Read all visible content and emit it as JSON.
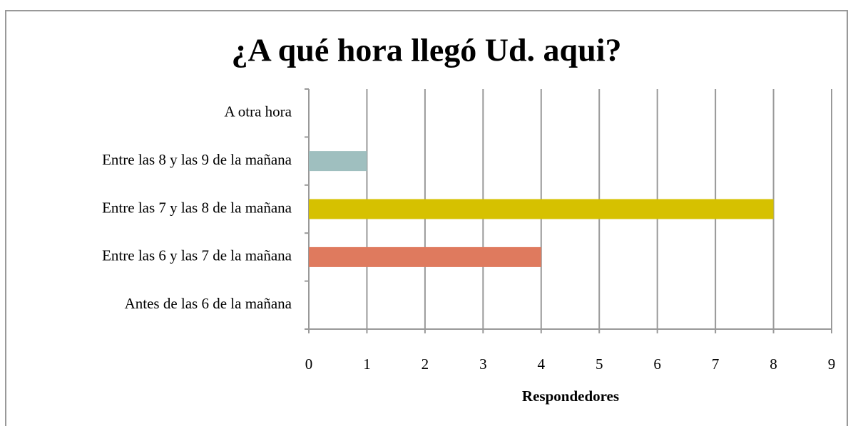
{
  "chart_data": {
    "type": "bar",
    "orientation": "horizontal",
    "title": "¿A qué hora llegó Ud. aqui?",
    "x_label": "Respondedores",
    "categories": [
      "Antes de las 6 de la mañana",
      "Entre las 6 y las 7 de la mañana",
      "Entre las 7 y las 8 de la mañana",
      "Entre las 8 y las 9 de la mañana",
      "A otra hora"
    ],
    "values": [
      0,
      4,
      8,
      1,
      0
    ],
    "colors": [
      "#7f9fc0",
      "#df7a5e",
      "#d6c100",
      "#9fbfbf",
      "#a4a4a4"
    ],
    "xlim": [
      0,
      9
    ],
    "xticks": [
      0,
      1,
      2,
      3,
      4,
      5,
      6,
      7,
      8,
      9
    ],
    "grid": true
  }
}
